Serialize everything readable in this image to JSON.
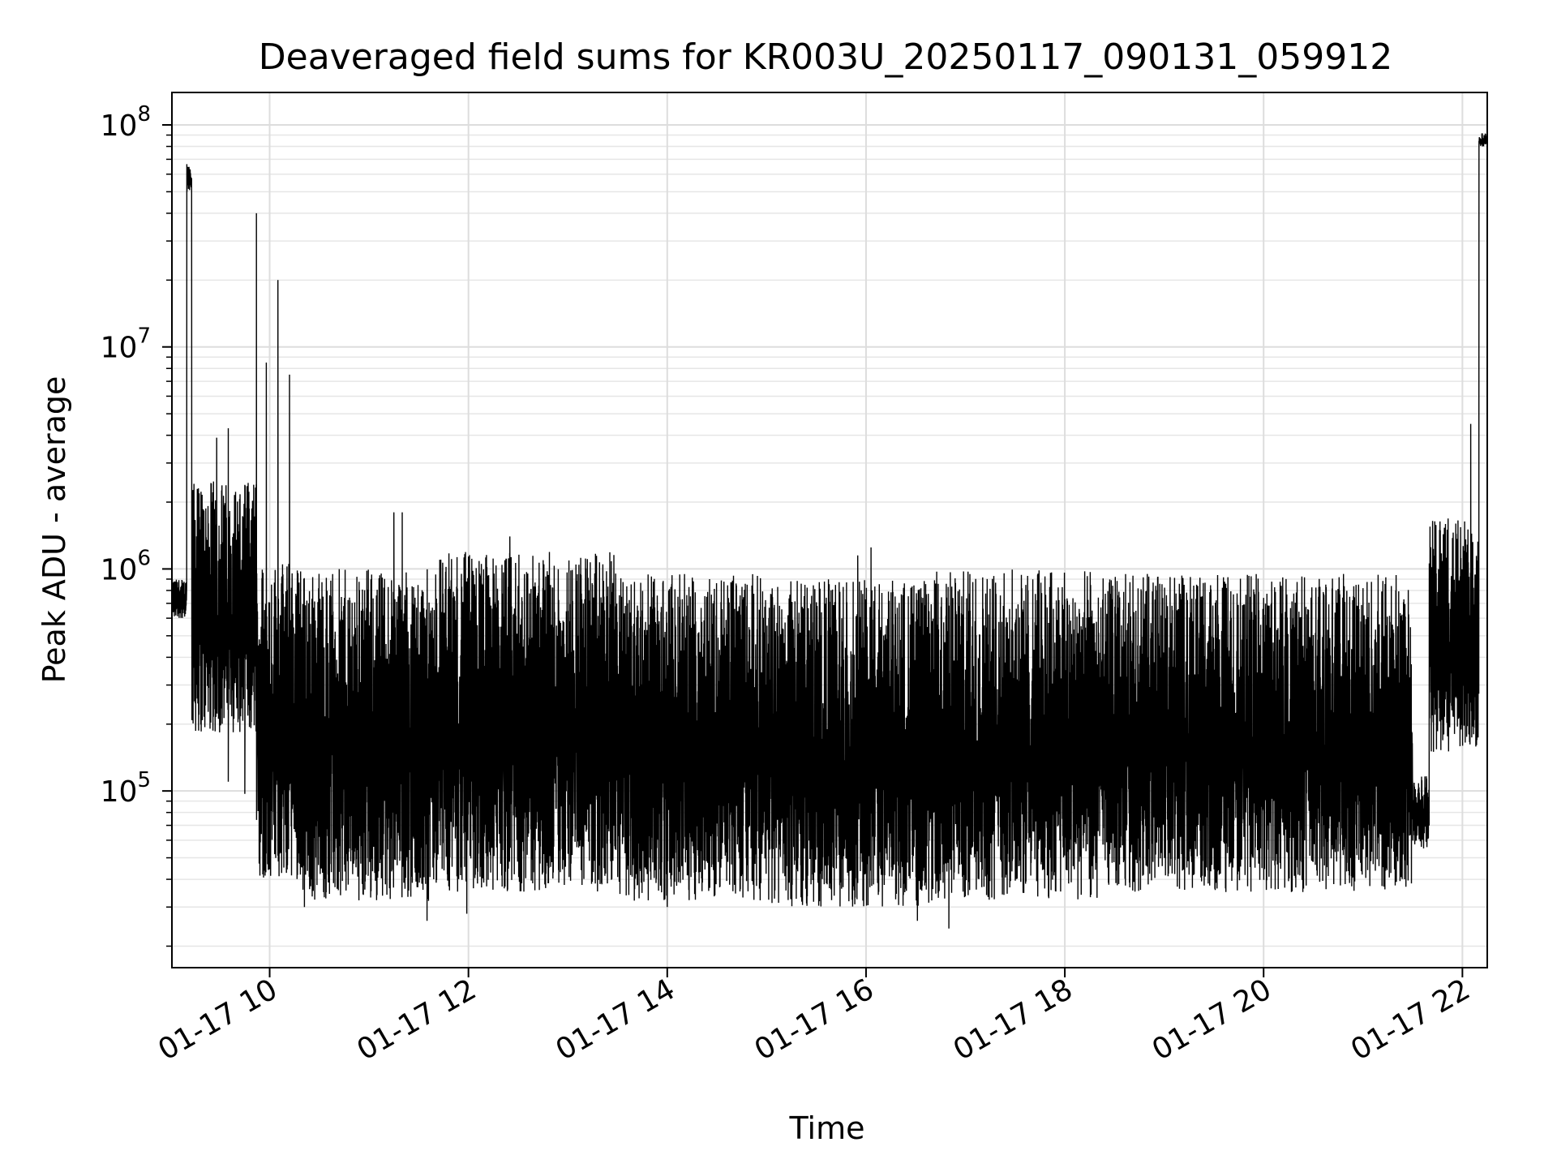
{
  "chart_data": {
    "type": "line",
    "title": "Deaveraged field sums for KR003U_20250117_090131_059912",
    "xlabel": "Time",
    "ylabel": "Peak ADU - average",
    "yscale": "log",
    "grid": true,
    "line_color": "#000000",
    "xlim": [
      "01-17 09:01",
      "01-17 22:15"
    ],
    "ylim": [
      16000,
      140000000
    ],
    "x_ticks": [
      "01-17 10",
      "01-17 12",
      "01-17 14",
      "01-17 16",
      "01-17 18",
      "01-17 20",
      "01-17 22"
    ],
    "y_ticks": [
      {
        "value": 100000,
        "base": "10",
        "exp": "5"
      },
      {
        "value": 1000000,
        "base": "10",
        "exp": "6"
      },
      {
        "value": 10000000,
        "base": "10",
        "exp": "7"
      },
      {
        "value": 100000000,
        "base": "10",
        "exp": "8"
      }
    ],
    "series": [
      {
        "segments": [
          {
            "start": "01-17 09:01",
            "end": "01-17 09:10",
            "low": 600000,
            "high": 900000
          },
          {
            "start": "01-17 09:10",
            "end": "01-17 09:13",
            "low": 50000000,
            "high": 68000000
          },
          {
            "start": "01-17 09:13",
            "end": "01-17 09:52",
            "low": 180000,
            "high": 2500000
          },
          {
            "start": "01-17 09:52",
            "end": "01-17 10:20",
            "low": 40000,
            "high": 1100000
          },
          {
            "start": "01-17 10:20",
            "end": "01-17 11:40",
            "low": 32000,
            "high": 1000000
          },
          {
            "start": "01-17 11:40",
            "end": "01-17 13:30",
            "low": 35000,
            "high": 1200000
          },
          {
            "start": "01-17 13:30",
            "end": "01-17 15:00",
            "low": 32000,
            "high": 950000
          },
          {
            "start": "01-17 15:00",
            "end": "01-17 16:40",
            "low": 30000,
            "high": 900000
          },
          {
            "start": "01-17 16:40",
            "end": "01-17 18:20",
            "low": 32000,
            "high": 1000000
          },
          {
            "start": "01-17 18:20",
            "end": "01-17 21:30",
            "low": 35000,
            "high": 950000
          },
          {
            "start": "01-17 21:30",
            "end": "01-17 21:40",
            "low": 55000,
            "high": 120000
          },
          {
            "start": "01-17 21:40",
            "end": "01-17 22:10",
            "low": 150000,
            "high": 1700000
          },
          {
            "start": "01-17 22:10",
            "end": "01-17 22:15",
            "low": 80000000,
            "high": 92000000
          }
        ],
        "spikes": [
          {
            "x": "01-17 09:52",
            "y": 40000000
          },
          {
            "x": "01-17 09:58",
            "y": 8500000
          },
          {
            "x": "01-17 10:05",
            "y": 20000000
          },
          {
            "x": "01-17 10:12",
            "y": 7500000
          },
          {
            "x": "01-17 09:35",
            "y": 4300000
          },
          {
            "x": "01-17 09:28",
            "y": 3900000
          },
          {
            "x": "01-17 11:15",
            "y": 1800000
          },
          {
            "x": "01-17 11:20",
            "y": 1800000
          },
          {
            "x": "01-17 12:25",
            "y": 1400000
          },
          {
            "x": "01-17 16:03",
            "y": 1250000
          },
          {
            "x": "01-17 15:55",
            "y": 1150000
          },
          {
            "x": "01-17 22:05",
            "y": 4500000
          }
        ],
        "dips": [
          {
            "x": "01-17 11:35",
            "y": 26000
          },
          {
            "x": "01-17 11:59",
            "y": 28000
          },
          {
            "x": "01-17 16:31",
            "y": 26000
          },
          {
            "x": "01-17 16:50",
            "y": 24000
          },
          {
            "x": "01-17 09:35",
            "y": 110000
          },
          {
            "x": "01-17 09:45",
            "y": 97000
          },
          {
            "x": "01-17 10:21",
            "y": 30000
          },
          {
            "x": "01-17 14:00",
            "y": 30000
          }
        ]
      }
    ]
  }
}
